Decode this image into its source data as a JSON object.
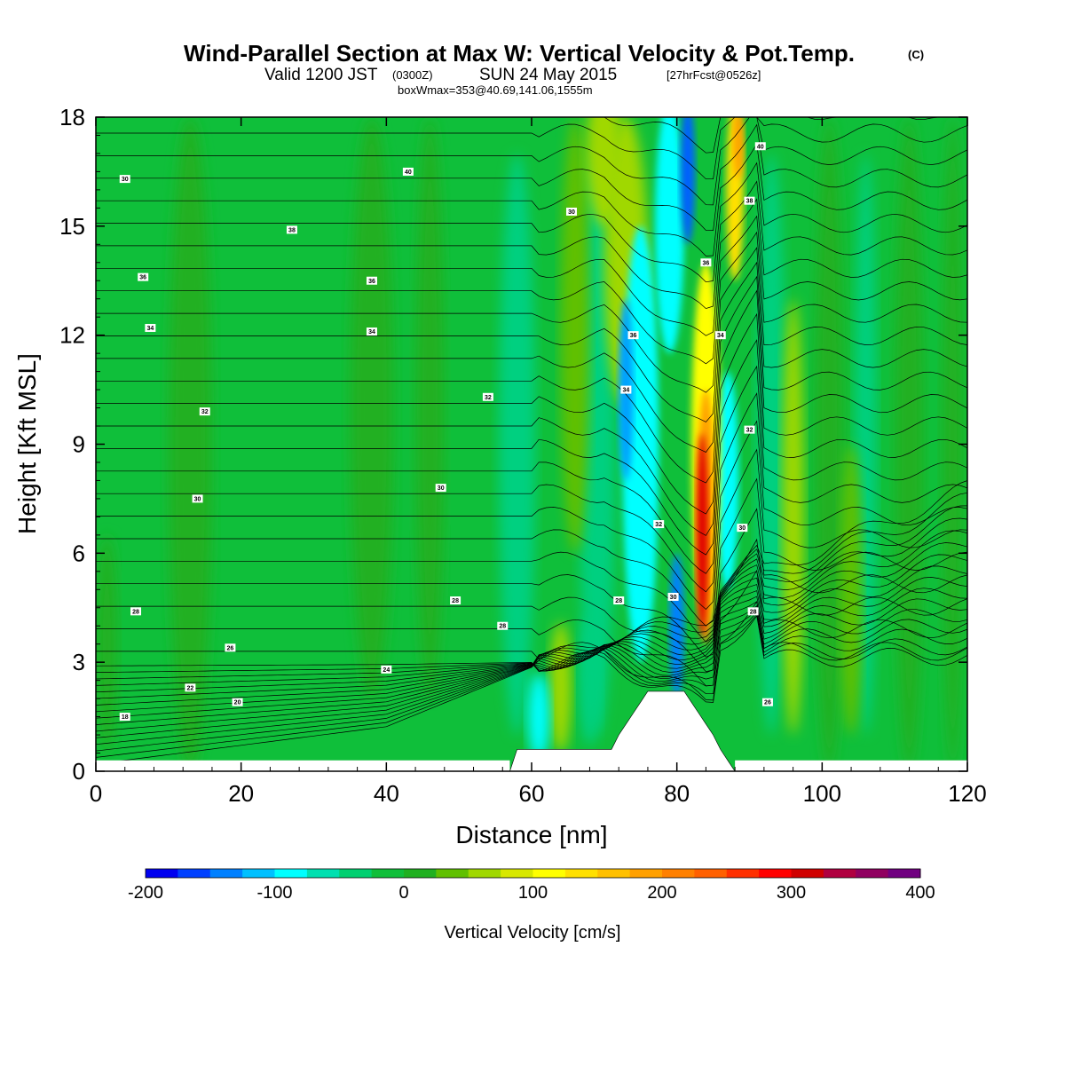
{
  "header": {
    "title": "Wind-Parallel Section at Max W: Vertical Velocity & Pot.Temp.",
    "copyright": "(C)",
    "valid_prefix": "Valid 1200 JST",
    "valid_utc": "(0300Z)",
    "valid_date": "SUN 24 May 2015",
    "forecast": "[27hrFcst@0526z]",
    "box_info": "boxWmax=353@40.69,141.06,1555m"
  },
  "colors": {
    "background_field": "#0fbf3a",
    "terrain": "#ffffff",
    "contour": "#000000"
  },
  "colorbar": {
    "label": "Vertical Velocity [cm/s]",
    "tick_labels": [
      "-200",
      "-100",
      "0",
      "100",
      "200",
      "300",
      "400"
    ],
    "colors": [
      "#0000f0",
      "#0040ff",
      "#0080ff",
      "#00c0ff",
      "#00ffff",
      "#00e0b0",
      "#00d070",
      "#10bf3a",
      "#20b020",
      "#60c000",
      "#a0d800",
      "#d8e800",
      "#ffff00",
      "#ffe000",
      "#ffc000",
      "#ffa000",
      "#ff8000",
      "#ff6000",
      "#ff3000",
      "#ff0000",
      "#d00000",
      "#b00040",
      "#900060",
      "#700080"
    ]
  },
  "chart_data": {
    "type": "heatmap",
    "xlabel": "Distance [nm]",
    "ylabel": "Height [Kft MSL]",
    "xlim": [
      0,
      120
    ],
    "ylim": [
      0,
      18
    ],
    "x_ticks": [
      "0",
      "20",
      "40",
      "60",
      "80",
      "100",
      "120"
    ],
    "y_ticks": [
      "0",
      "3",
      "6",
      "9",
      "12",
      "15",
      "18"
    ],
    "colorbar_range_cm_s": [
      -200,
      400
    ],
    "max_vertical_velocity_cm_s": 353,
    "max_location": "40.69,141.06,1555m",
    "features": [
      {
        "name": "downdraft",
        "x_nm": 80,
        "height_kft_range": [
          2,
          18
        ],
        "w_cm_s": -200
      },
      {
        "name": "updraft",
        "x_nm": 83,
        "height_kft_range": [
          3,
          11
        ],
        "w_cm_s": 350
      },
      {
        "name": "upper updraft",
        "x_nm": 87,
        "height_kft_range": [
          12,
          18
        ],
        "w_cm_s": 150
      }
    ],
    "terrain_profile": [
      [
        57,
        0
      ],
      [
        58,
        0.6
      ],
      [
        71,
        0.6
      ],
      [
        72,
        1.0
      ],
      [
        73,
        1.3
      ],
      [
        74,
        1.6
      ],
      [
        75,
        1.9
      ],
      [
        76,
        2.2
      ],
      [
        81,
        2.2
      ],
      [
        82,
        1.9
      ],
      [
        83,
        1.6
      ],
      [
        84,
        1.3
      ],
      [
        85,
        1.0
      ],
      [
        86,
        0.6
      ],
      [
        87,
        0.3
      ],
      [
        88,
        0
      ]
    ],
    "theta_contour_labels": [
      {
        "text": "30",
        "x": 4,
        "y": 16.3
      },
      {
        "text": "38",
        "x": 27,
        "y": 14.9
      },
      {
        "text": "36",
        "x": 6.5,
        "y": 13.6
      },
      {
        "text": "36",
        "x": 38,
        "y": 13.5
      },
      {
        "text": "34",
        "x": 7.5,
        "y": 12.2
      },
      {
        "text": "34",
        "x": 38,
        "y": 12.1
      },
      {
        "text": "32",
        "x": 15,
        "y": 9.9
      },
      {
        "text": "32",
        "x": 54,
        "y": 10.3
      },
      {
        "text": "30",
        "x": 14,
        "y": 7.5
      },
      {
        "text": "30",
        "x": 47.5,
        "y": 7.8
      },
      {
        "text": "28",
        "x": 5.5,
        "y": 4.4
      },
      {
        "text": "28",
        "x": 49.5,
        "y": 4.7
      },
      {
        "text": "26",
        "x": 18.5,
        "y": 3.4
      },
      {
        "text": "24",
        "x": 40,
        "y": 2.8
      },
      {
        "text": "22",
        "x": 13,
        "y": 2.3
      },
      {
        "text": "20",
        "x": 19.5,
        "y": 1.9
      },
      {
        "text": "18",
        "x": 4,
        "y": 1.5
      },
      {
        "text": "28",
        "x": 56,
        "y": 4.0
      },
      {
        "text": "28",
        "x": 72,
        "y": 4.7
      },
      {
        "text": "30",
        "x": 65.5,
        "y": 15.4
      },
      {
        "text": "40",
        "x": 43,
        "y": 16.5
      },
      {
        "text": "40",
        "x": 91.5,
        "y": 17.2
      },
      {
        "text": "38",
        "x": 90,
        "y": 15.7
      },
      {
        "text": "36",
        "x": 84,
        "y": 14.0
      },
      {
        "text": "36",
        "x": 74,
        "y": 12.0
      },
      {
        "text": "34",
        "x": 86,
        "y": 12.0
      },
      {
        "text": "34",
        "x": 73,
        "y": 10.5
      },
      {
        "text": "32",
        "x": 90,
        "y": 9.4
      },
      {
        "text": "32",
        "x": 77.5,
        "y": 6.8
      },
      {
        "text": "30",
        "x": 89,
        "y": 6.7
      },
      {
        "text": "30",
        "x": 79.5,
        "y": 4.8
      },
      {
        "text": "28",
        "x": 90.5,
        "y": 4.4
      },
      {
        "text": "26",
        "x": 92.5,
        "y": 1.9
      }
    ]
  }
}
